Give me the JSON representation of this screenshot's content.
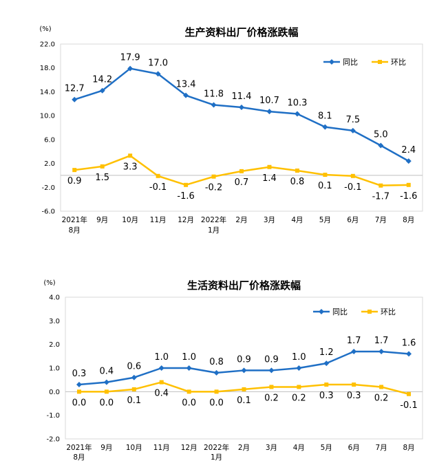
{
  "chart_data": [
    {
      "type": "line",
      "title": "生产资料出厂价格涨跌幅",
      "unit": "(%)",
      "ylim": [
        -6.0,
        22.0
      ],
      "yticks": [
        "22.0",
        "18.0",
        "14.0",
        "10.0",
        "6.0",
        "2.0",
        "-2.0",
        "-6.0"
      ],
      "categories": [
        [
          "2021年",
          "8月"
        ],
        [
          "9月"
        ],
        [
          "10月"
        ],
        [
          "11月"
        ],
        [
          "12月"
        ],
        [
          "2022年",
          "1月"
        ],
        [
          "2月"
        ],
        [
          "3月"
        ],
        [
          "4月"
        ],
        [
          "5月"
        ],
        [
          "6月"
        ],
        [
          "7月"
        ],
        [
          "8月"
        ]
      ],
      "legend_position": "top-right",
      "series": [
        {
          "name": "同比",
          "color": "#1f6fc5",
          "marker": "diamond",
          "values": [
            12.7,
            14.2,
            17.9,
            17.0,
            13.4,
            11.8,
            11.4,
            10.7,
            10.3,
            8.1,
            7.5,
            5.0,
            2.4
          ],
          "labels": [
            "12.7",
            "14.2",
            "17.9",
            "17.0",
            "13.4",
            "11.8",
            "11.4",
            "10.7",
            "10.3",
            "8.1",
            "7.5",
            "5.0",
            "2.4"
          ]
        },
        {
          "name": "环比",
          "color": "#ffc000",
          "marker": "square",
          "values": [
            0.9,
            1.5,
            3.3,
            -0.1,
            -1.6,
            -0.2,
            0.7,
            1.4,
            0.8,
            0.1,
            -0.1,
            -1.7,
            -1.6
          ],
          "labels": [
            "0.9",
            "1.5",
            "3.3",
            "-0.1",
            "-1.6",
            "-0.2",
            "0.7",
            "1.4",
            "0.8",
            "0.1",
            "-0.1",
            "-1.7",
            "-1.6"
          ]
        }
      ]
    },
    {
      "type": "line",
      "title": "生活资料出厂价格涨跌幅",
      "unit": "(%)",
      "ylim": [
        -2.0,
        4.0
      ],
      "yticks": [
        "4.0",
        "3.0",
        "2.0",
        "1.0",
        "0.0",
        "-1.0",
        "-2.0"
      ],
      "categories": [
        [
          "2021年",
          "8月"
        ],
        [
          "9月"
        ],
        [
          "10月"
        ],
        [
          "11月"
        ],
        [
          "12月"
        ],
        [
          "2022年",
          "1月"
        ],
        [
          "2月"
        ],
        [
          "3月"
        ],
        [
          "4月"
        ],
        [
          "5月"
        ],
        [
          "6月"
        ],
        [
          "7月"
        ],
        [
          "8月"
        ]
      ],
      "legend_position": "top-right",
      "series": [
        {
          "name": "同比",
          "color": "#1f6fc5",
          "marker": "diamond",
          "values": [
            0.3,
            0.4,
            0.6,
            1.0,
            1.0,
            0.8,
            0.9,
            0.9,
            1.0,
            1.2,
            1.7,
            1.7,
            1.6
          ],
          "labels": [
            "0.3",
            "0.4",
            "0.6",
            "1.0",
            "1.0",
            "0.8",
            "0.9",
            "0.9",
            "1.0",
            "1.2",
            "1.7",
            "1.7",
            "1.6"
          ]
        },
        {
          "name": "环比",
          "color": "#ffc000",
          "marker": "square",
          "values": [
            0.0,
            0.0,
            0.1,
            0.4,
            0.0,
            0.0,
            0.1,
            0.2,
            0.2,
            0.3,
            0.3,
            0.2,
            -0.1
          ],
          "labels": [
            "0.0",
            "0.0",
            "0.1",
            "0.4",
            "0.0",
            "0.0",
            "0.1",
            "0.2",
            "0.2",
            "0.3",
            "0.3",
            "0.2",
            "-0.1"
          ]
        }
      ]
    }
  ]
}
